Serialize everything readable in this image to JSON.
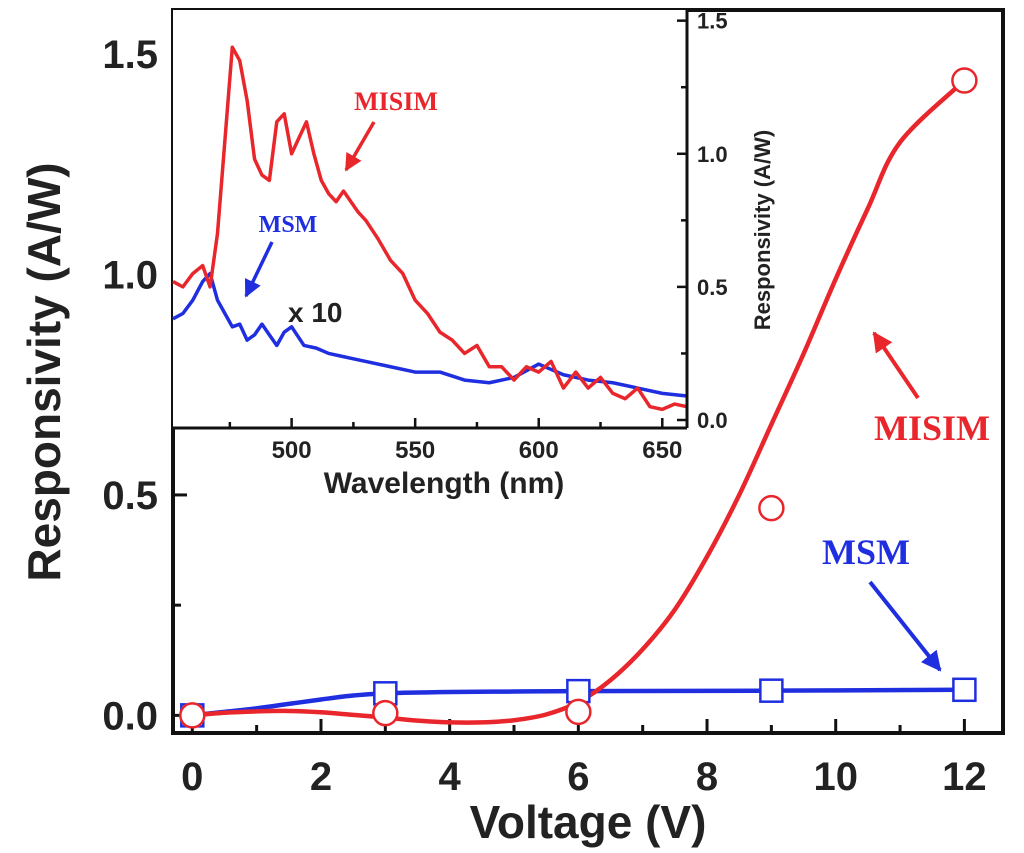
{
  "chart_data": [
    {
      "type": "line",
      "name": "main",
      "xlabel": "Voltage (V)",
      "ylabel": "Responsivity (A/W)",
      "xlim": [
        -0.3,
        12.6
      ],
      "ylim": [
        -0.04,
        1.6
      ],
      "x_ticks": [
        0,
        2,
        4,
        6,
        8,
        10,
        12
      ],
      "x_tick_labels": [
        "0",
        "2",
        "4",
        "6",
        "8",
        "10",
        "12"
      ],
      "y_ticks": [
        0.0,
        0.5,
        1.0,
        1.5
      ],
      "y_tick_labels": [
        "0.0",
        "0.5",
        "1.0",
        "1.5"
      ],
      "series": [
        {
          "name": "MISIM",
          "color": "#e8262b",
          "marker": "circle",
          "x": [
            0,
            3,
            6,
            9,
            12
          ],
          "y": [
            0.0,
            0.005,
            0.008,
            0.47,
            1.44
          ],
          "curve_y": [
            0.0,
            0.006,
            0.009,
            0.01,
            0.007,
            0.001,
            -0.005,
            -0.012,
            -0.016,
            -0.016,
            -0.011,
            0.002,
            0.03,
            0.08,
            0.15,
            0.24,
            0.36,
            0.5,
            0.66,
            0.82,
            0.99,
            1.15,
            1.3,
            1.44
          ],
          "curve_x": [
            0,
            0.5,
            1,
            1.5,
            2,
            2.5,
            3,
            3.5,
            4,
            4.5,
            5,
            5.5,
            6,
            6.5,
            7,
            7.5,
            8,
            8.5,
            9,
            9.5,
            10,
            10.5,
            11,
            12
          ]
        },
        {
          "name": "MSM",
          "color": "#1f2fe0",
          "marker": "square",
          "x": [
            0,
            3,
            6,
            9,
            12
          ],
          "y": [
            0.0,
            0.05,
            0.055,
            0.056,
            0.058
          ],
          "curve_x": [
            0,
            0.5,
            1,
            1.5,
            2,
            2.5,
            3,
            4,
            5,
            6,
            9,
            12
          ],
          "curve_y": [
            0.0,
            0.008,
            0.016,
            0.026,
            0.036,
            0.045,
            0.05,
            0.053,
            0.054,
            0.055,
            0.056,
            0.058
          ]
        }
      ],
      "annotations": [
        {
          "text": "MISIM",
          "color": "#e8262b",
          "x": 10.8,
          "y": 0.64,
          "arrow_to_x": 10.4,
          "arrow_to_y": 0.86
        },
        {
          "text": "MSM",
          "color": "#1f2fe0",
          "x": 10.0,
          "y": 0.36,
          "arrow_to_x": 11.6,
          "arrow_to_y": 0.09
        }
      ]
    },
    {
      "type": "line",
      "name": "inset",
      "xlabel": "Wavelength (nm)",
      "ylabel": "Responsivity (A/W)",
      "xlim": [
        452,
        660
      ],
      "ylim": [
        -0.03,
        1.54
      ],
      "x_ticks": [
        500,
        550,
        600,
        650
      ],
      "x_tick_labels": [
        "500",
        "550",
        "600",
        "650"
      ],
      "y_ticks": [
        0.0,
        0.5,
        1.0,
        1.5
      ],
      "y_tick_labels": [
        "0.0",
        "0.5",
        "1.0",
        "1.5"
      ],
      "series": [
        {
          "name": "MISIM",
          "color": "#e8262b",
          "x": [
            452,
            456,
            460,
            464,
            467,
            470,
            473,
            476,
            479,
            482,
            485,
            488,
            491,
            494,
            497,
            500,
            503,
            506,
            509,
            512,
            515,
            518,
            521,
            524,
            527,
            530,
            535,
            540,
            545,
            550,
            555,
            560,
            565,
            570,
            575,
            580,
            585,
            590,
            595,
            600,
            605,
            610,
            615,
            620,
            625,
            630,
            635,
            640,
            645,
            650,
            655,
            660
          ],
          "y": [
            0.52,
            0.5,
            0.55,
            0.58,
            0.5,
            0.7,
            1.05,
            1.4,
            1.35,
            1.2,
            0.98,
            0.92,
            0.9,
            1.12,
            1.15,
            1.0,
            1.06,
            1.12,
            1.0,
            0.9,
            0.85,
            0.82,
            0.86,
            0.82,
            0.78,
            0.75,
            0.68,
            0.6,
            0.55,
            0.45,
            0.4,
            0.33,
            0.3,
            0.25,
            0.28,
            0.2,
            0.2,
            0.15,
            0.2,
            0.18,
            0.22,
            0.12,
            0.18,
            0.12,
            0.16,
            0.1,
            0.08,
            0.12,
            0.05,
            0.04,
            0.06,
            0.05
          ]
        },
        {
          "name": "MSM x 10",
          "color": "#1f2fe0",
          "x": [
            452,
            456,
            460,
            464,
            467,
            470,
            473,
            476,
            479,
            482,
            485,
            488,
            491,
            494,
            497,
            500,
            505,
            510,
            515,
            520,
            525,
            530,
            540,
            550,
            560,
            570,
            580,
            590,
            600,
            605,
            610,
            620,
            630,
            640,
            650,
            660
          ],
          "y": [
            0.38,
            0.4,
            0.45,
            0.52,
            0.55,
            0.45,
            0.4,
            0.35,
            0.36,
            0.3,
            0.32,
            0.36,
            0.32,
            0.28,
            0.33,
            0.35,
            0.28,
            0.27,
            0.25,
            0.24,
            0.23,
            0.22,
            0.2,
            0.18,
            0.18,
            0.15,
            0.14,
            0.16,
            0.21,
            0.19,
            0.17,
            0.15,
            0.14,
            0.12,
            0.1,
            0.09
          ]
        }
      ],
      "annotations": [
        {
          "text": "MISIM",
          "color": "#e8262b"
        },
        {
          "text": "MSM",
          "color": "#1f2fe0"
        },
        {
          "text": "x 10",
          "color": "#222222"
        }
      ]
    }
  ]
}
